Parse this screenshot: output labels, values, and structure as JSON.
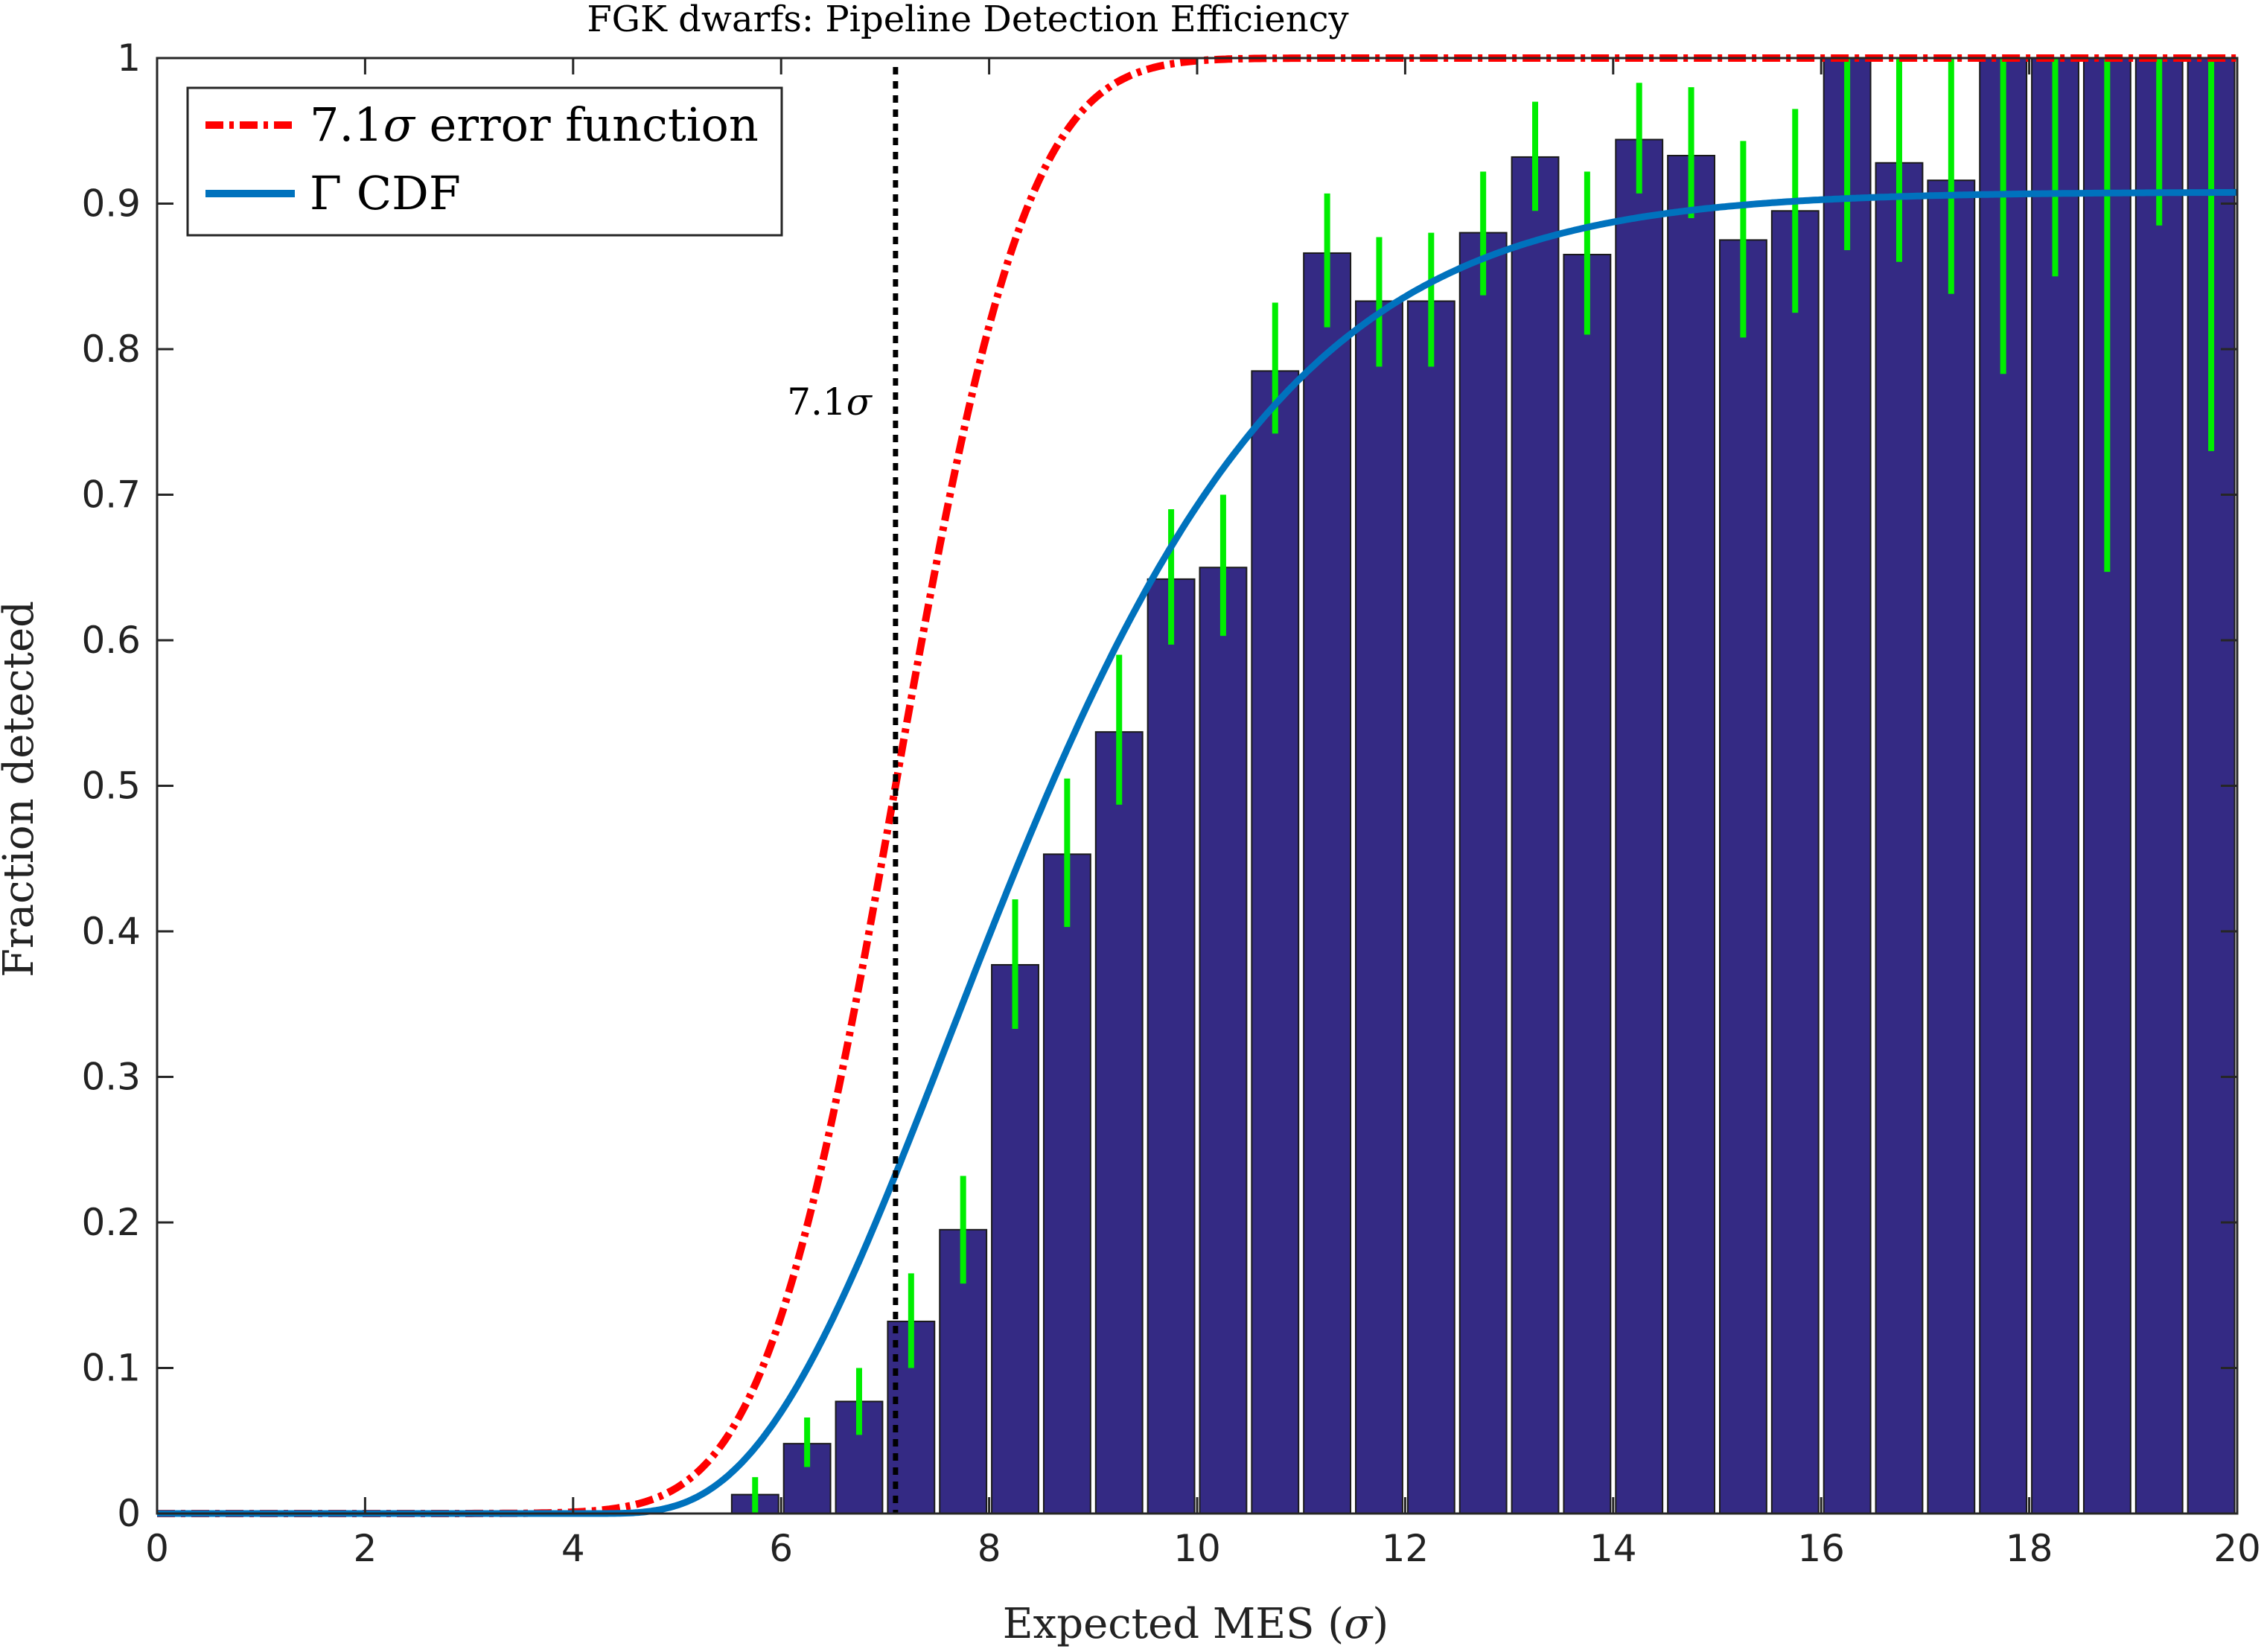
{
  "chart_data": {
    "type": "bar",
    "title": "FGK dwarfs: Pipeline Detection Efficiency",
    "xlabel_text": "Expected MES (",
    "xlabel_sym": "σ",
    "xlabel_close": ")",
    "ylabel": "Fraction detected",
    "xlim": [
      0,
      20
    ],
    "ylim": [
      0,
      1
    ],
    "grid": false,
    "legend_position": "top-left",
    "x_ticks": [
      "0",
      "2",
      "4",
      "6",
      "8",
      "10",
      "12",
      "14",
      "16",
      "18",
      "20"
    ],
    "y_ticks": [
      "0",
      "0.1",
      "0.2",
      "0.3",
      "0.4",
      "0.5",
      "0.6",
      "0.7",
      "0.8",
      "0.9",
      "1"
    ],
    "bar_width": 0.45,
    "bars": {
      "x": [
        5.75,
        6.25,
        6.75,
        7.25,
        7.75,
        8.25,
        8.75,
        9.25,
        9.75,
        10.25,
        10.75,
        11.25,
        11.75,
        12.25,
        12.75,
        13.25,
        13.75,
        14.25,
        14.75,
        15.25,
        15.75,
        16.25,
        16.75,
        17.25,
        17.75,
        18.25,
        18.75,
        19.25,
        19.75
      ],
      "values": [
        0.013,
        0.048,
        0.077,
        0.132,
        0.195,
        0.377,
        0.453,
        0.537,
        0.642,
        0.65,
        0.785,
        0.866,
        0.833,
        0.833,
        0.88,
        0.932,
        0.865,
        0.944,
        0.933,
        0.875,
        0.895,
        1.0,
        0.928,
        0.916,
        1.0,
        1.0,
        1.0,
        1.0,
        1.0
      ],
      "err_low": [
        0.0,
        0.032,
        0.054,
        0.1,
        0.158,
        0.333,
        0.403,
        0.487,
        0.597,
        0.603,
        0.742,
        0.815,
        0.788,
        0.788,
        0.837,
        0.895,
        0.81,
        0.907,
        0.89,
        0.808,
        0.825,
        0.868,
        0.86,
        0.838,
        0.783,
        0.85,
        0.647,
        0.885,
        0.73
      ],
      "err_high": [
        0.025,
        0.066,
        0.1,
        0.165,
        0.232,
        0.422,
        0.505,
        0.59,
        0.69,
        0.7,
        0.832,
        0.907,
        0.877,
        0.88,
        0.922,
        0.97,
        0.922,
        0.983,
        0.98,
        0.943,
        0.965,
        1.0,
        1.0,
        1.0,
        1.0,
        1.0,
        1.0,
        1.0,
        1.0
      ],
      "bar_color": "#342a84",
      "errorbar_color": "#00ee00"
    },
    "series": [
      {
        "name_prefix": "7.1",
        "name_sym": "σ",
        "name_suffix": " error function",
        "function": "erf",
        "mu": 7.1,
        "sigma": 1.0,
        "color": "#ff0000",
        "style": "dash-dot"
      },
      {
        "name_prefix": "Γ",
        "name_suffix": " CDF",
        "function": "gamma_cdf",
        "shape": 4.35,
        "scale": 1.05,
        "offset": 4.1,
        "scale_factor": 0.908,
        "color": "#0072bd",
        "style": "solid"
      }
    ],
    "vline": {
      "x": 7.1,
      "label_prefix": "7.1",
      "label_sym": "σ",
      "color": "#000000",
      "style": "dotted"
    }
  }
}
